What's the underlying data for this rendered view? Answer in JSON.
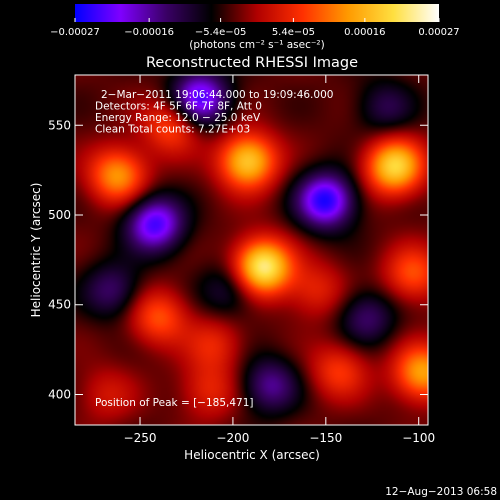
{
  "chart_data": {
    "type": "heatmap",
    "title": "Reconstructed RHESSI Image",
    "xlabel": "Heliocentric X (arcsec)",
    "ylabel": "Heliocentric Y (arcsec)",
    "xlim": [
      -285,
      -95
    ],
    "ylim": [
      383,
      578
    ],
    "xticks": [
      -250,
      -200,
      -150,
      -100
    ],
    "xtick_labels": [
      "−250",
      "−200",
      "−150",
      "−100"
    ],
    "yticks": [
      400,
      450,
      500,
      550
    ],
    "ytick_labels": [
      "400",
      "450",
      "500",
      "550"
    ],
    "colorbar": {
      "min": -0.00027,
      "max": 0.00027,
      "ticks": [
        -0.00027,
        -0.00016,
        -5.4e-05,
        5.4e-05,
        0.00016,
        0.00027
      ],
      "tick_labels": [
        "−0.00027",
        "−0.00016",
        "−5.4e−05",
        "5.4e−05",
        "0.00016",
        "0.00027"
      ],
      "units": "(photons cm⁻² s⁻¹ asec⁻²)",
      "colors": [
        "#0000ff",
        "#7f00ff",
        "#3a0066",
        "#000000",
        "#b00000",
        "#ff3000",
        "#ff9a00",
        "#ffdf40",
        "#ffffff"
      ]
    },
    "info_lines": [
      "2−Mar−2011 19:06:44.000 to 19:09:46.000",
      "Detectors: 4F 5F 6F 7F 8F, Att 0",
      "Energy Range: 12.0 − 25.0 keV",
      "Clean    Total counts: 7.27E+03"
    ],
    "peak_label": "Position of Peak = [−185,471]",
    "peak": [
      -185,
      471
    ],
    "sources": [
      {
        "x": -184,
        "y": 471,
        "value": 0.00027
      },
      {
        "x": -192,
        "y": 530,
        "value": 0.00022
      },
      {
        "x": -113,
        "y": 527,
        "value": 0.00023
      },
      {
        "x": -262,
        "y": 522,
        "value": 0.00017
      },
      {
        "x": -233,
        "y": 550,
        "value": 0.00012
      },
      {
        "x": -103,
        "y": 467,
        "value": 0.00012
      },
      {
        "x": -98,
        "y": 412,
        "value": 0.00018
      },
      {
        "x": -240,
        "y": 443,
        "value": 0.00012
      },
      {
        "x": -143,
        "y": 413,
        "value": 0.0001
      },
      {
        "x": -155,
        "y": 458,
        "value": 8e-05
      },
      {
        "x": -210,
        "y": 428,
        "value": 8e-05
      },
      {
        "x": -268,
        "y": 400,
        "value": 6e-05
      },
      {
        "x": -213,
        "y": 402,
        "value": 8e-05
      },
      {
        "x": -242,
        "y": 495,
        "value": -0.0002
      },
      {
        "x": -150,
        "y": 508,
        "value": -0.00022
      },
      {
        "x": -218,
        "y": 565,
        "value": -0.0002
      },
      {
        "x": -118,
        "y": 560,
        "value": -8e-05
      },
      {
        "x": -202,
        "y": 458,
        "value": -8e-05
      },
      {
        "x": -128,
        "y": 443,
        "value": -0.0001
      },
      {
        "x": -265,
        "y": 458,
        "value": -0.0001
      },
      {
        "x": -180,
        "y": 405,
        "value": -0.00012
      }
    ]
  },
  "footer": {
    "timestamp": "12−Aug−2013 06:58"
  }
}
